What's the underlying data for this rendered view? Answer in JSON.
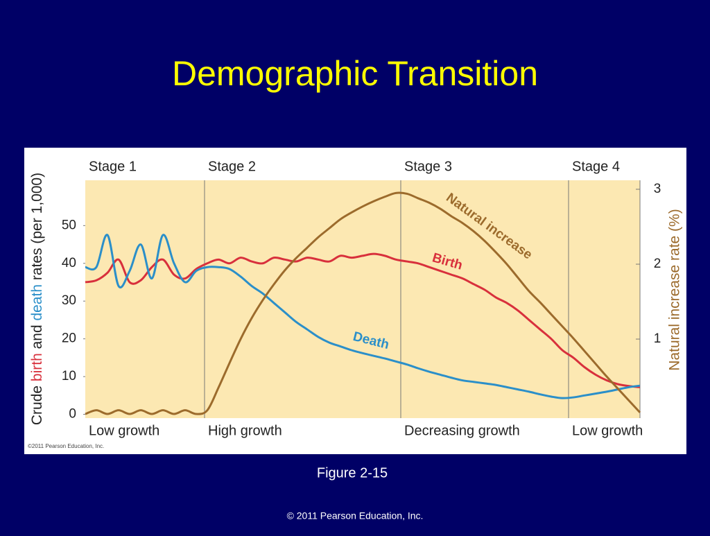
{
  "slide_title": "Demographic Transition",
  "figure_caption": "Figure 2-15",
  "footer": "© 2011 Pearson Education, Inc.",
  "chart_data": {
    "type": "line",
    "copyright": "©2011 Pearson Education, Inc.",
    "ylabel_parts": [
      "Crude ",
      "birth",
      " and ",
      "death",
      " rates (per 1,000)"
    ],
    "y2label": "Natural increase rate (%)",
    "stages": [
      {
        "label": "Stage 1",
        "growth": "Low growth"
      },
      {
        "label": "Stage 2",
        "growth": "High growth"
      },
      {
        "label": "Stage 3",
        "growth": "Decreasing growth"
      },
      {
        "label": "Stage 4",
        "growth": "Low growth"
      }
    ],
    "categories": [
      null,
      null,
      null,
      null,
      null,
      null,
      null,
      null,
      null,
      null,
      null,
      null,
      null,
      null,
      null,
      null,
      null,
      null,
      null,
      null,
      null,
      null,
      null,
      null,
      null,
      null,
      null,
      null,
      null,
      null,
      null,
      null,
      null,
      null,
      null,
      null,
      null,
      null,
      null,
      null,
      null,
      null,
      null,
      null,
      null,
      null,
      null,
      null,
      null,
      null,
      null
    ],
    "ylim": [
      -1,
      62
    ],
    "yticks": [
      0,
      10,
      20,
      30,
      40,
      50
    ],
    "y2lim": [
      -0.055,
      3.12
    ],
    "y2ticks": [
      1,
      2,
      3
    ],
    "series": [
      {
        "name": "Birth",
        "color": "#d8303c",
        "values": [
          35,
          35.5,
          37.5,
          41,
          35,
          35.5,
          39,
          41,
          37,
          36,
          38.5,
          40,
          41,
          40,
          41.5,
          40.5,
          40,
          41.5,
          41,
          40.5,
          41.5,
          41,
          40.5,
          42,
          41.5,
          42,
          42.5,
          42,
          41,
          40.5,
          40,
          39,
          38,
          37,
          36,
          34.5,
          33,
          31,
          29.5,
          27.5,
          25,
          22.5,
          20,
          17,
          15,
          12.5,
          10.5,
          9,
          8,
          7.5,
          7.2
        ]
      },
      {
        "name": "Death",
        "color": "#2b8fc9",
        "values": [
          39,
          39,
          47.5,
          34,
          38,
          45,
          36,
          47.5,
          40,
          35,
          38,
          39,
          39,
          38.5,
          36.5,
          34,
          32,
          29.5,
          27,
          24.5,
          22.5,
          20.5,
          19,
          18,
          17,
          16.2,
          15.5,
          14.8,
          14,
          13.2,
          12.2,
          11.3,
          10.5,
          9.7,
          9,
          8.6,
          8.2,
          7.8,
          7.2,
          6.6,
          6,
          5.3,
          4.7,
          4.3,
          4.5,
          5,
          5.5,
          6,
          6.6,
          7.2,
          7.6
        ]
      },
      {
        "name": "Natural increase",
        "color": "#9c6b2c",
        "axis": "y2",
        "values": [
          0,
          0.05,
          0,
          0.05,
          0,
          0.05,
          0,
          0.05,
          0,
          0.05,
          0,
          0.05,
          0.35,
          0.68,
          1.0,
          1.28,
          1.52,
          1.73,
          1.92,
          2.08,
          2.22,
          2.36,
          2.48,
          2.6,
          2.69,
          2.77,
          2.84,
          2.9,
          2.95,
          2.94,
          2.88,
          2.82,
          2.74,
          2.64,
          2.55,
          2.44,
          2.31,
          2.16,
          2.0,
          1.82,
          1.64,
          1.49,
          1.33,
          1.17,
          1.01,
          0.84,
          0.67,
          0.5,
          0.34,
          0.18,
          0.02
        ]
      }
    ]
  }
}
